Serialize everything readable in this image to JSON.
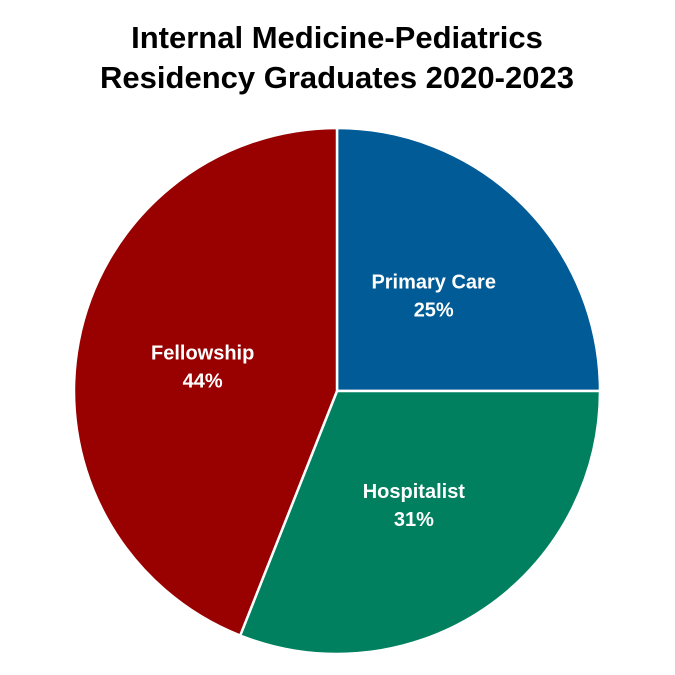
{
  "chart_data": {
    "type": "pie",
    "title": [
      "Internal Medicine-Pediatrics",
      "Residency Graduates 2020-2023"
    ],
    "categories": [
      "Primary Care",
      "Hospitalist",
      "Fellowship"
    ],
    "values": [
      25,
      31,
      44
    ],
    "value_labels": [
      "25%",
      "31%",
      "44%"
    ],
    "colors": [
      "#005b96",
      "#00805f",
      "#990000"
    ]
  }
}
